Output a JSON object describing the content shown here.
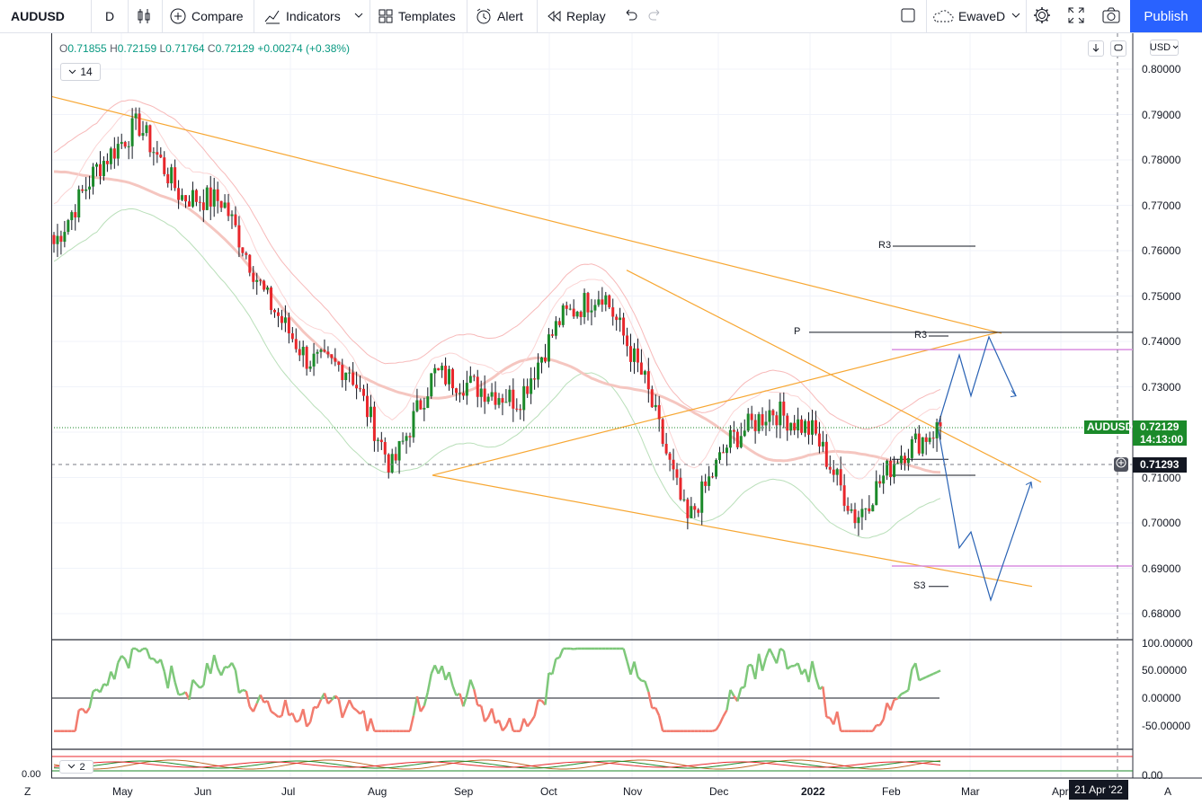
{
  "toolbar": {
    "symbol": "AUDUSD",
    "interval": "D",
    "compare_label": "Compare",
    "indicators_label": "Indicators",
    "templates_label": "Templates",
    "alert_label": "Alert",
    "replay_label": "Replay",
    "layout_name": "EwaveD",
    "publish_label": "Publish"
  },
  "legend": {
    "open_key": "O",
    "open": "0.71855",
    "high_key": "H",
    "high": "0.72159",
    "low_key": "L",
    "low": "0.71764",
    "close_key": "C",
    "close": "0.72129",
    "change": "+0.00274 (+0.38%)",
    "study_value": "14",
    "study2_value": "2"
  },
  "price_scale": {
    "currency": "USD",
    "ticks": [
      "0.80000",
      "0.79000",
      "0.78000",
      "0.77000",
      "0.76000",
      "0.75000",
      "0.74000",
      "0.73000",
      "0.72000",
      "0.71000",
      "0.70000",
      "0.69000",
      "0.68000"
    ],
    "last_symbol": "AUDUSD",
    "last_price": "0.72129",
    "countdown": "14:13:00",
    "crosshair_price": "0.71293"
  },
  "osc_scale": {
    "ticks": [
      "100.00000",
      "50.00000",
      "0.00000",
      "-50.00000"
    ],
    "bottom_tick": "0.00",
    "left_tick": "0.00"
  },
  "time_axis": {
    "labels": [
      "May",
      "Jun",
      "Jul",
      "Aug",
      "Sep",
      "Oct",
      "Nov",
      "Dec",
      "2022",
      "Feb",
      "Mar",
      "Apr"
    ],
    "crosshair_date": "21 Apr '22",
    "left_btn": "Z",
    "right_btn": "A"
  },
  "annotations": {
    "r3_upper": "R3",
    "pivot": "P",
    "r3_lower": "R3",
    "s3": "S3"
  },
  "colors": {
    "up": "#089981",
    "down": "#f23645",
    "up_candle": "#1b8a2a",
    "down_candle": "#e8262b",
    "trendline": "#f7a733",
    "projection": "#2962b4",
    "magenta_level": "#d98ee0",
    "publish": "#2962ff",
    "last_price_bg": "#1b8a2a"
  },
  "chart_data": {
    "type": "candlestick",
    "symbol": "AUDUSD",
    "interval": "D",
    "x_range": [
      "Apr 2021",
      "Apr 2022"
    ],
    "ylim": [
      0.675,
      0.805
    ],
    "close_path": [
      [
        "Apr",
        0.7615
      ],
      [
        "May",
        0.778
      ],
      [
        "May",
        0.788
      ],
      [
        "Jun",
        0.772
      ],
      [
        "Jun",
        0.771
      ],
      [
        "Jul",
        0.75
      ],
      [
        "Jul",
        0.736
      ],
      [
        "Aug",
        0.734
      ],
      [
        "Aug",
        0.712
      ],
      [
        "Sep",
        0.733
      ],
      [
        "Sep",
        0.73
      ],
      [
        "Oct",
        0.727
      ],
      [
        "Oct",
        0.745
      ],
      [
        "Nov",
        0.751
      ],
      [
        "Nov",
        0.731
      ],
      [
        "Dec",
        0.7
      ],
      [
        "Dec",
        0.718
      ],
      [
        "Jan 2022",
        0.725
      ],
      [
        "Jan 2022",
        0.72
      ],
      [
        "Feb",
        0.701
      ],
      [
        "Feb",
        0.715
      ],
      [
        "Feb",
        0.7213
      ]
    ],
    "levels": {
      "R3_upper": 0.761,
      "P": 0.742,
      "R3_lower": 0.7412,
      "S3": 0.686,
      "magenta_upper": 0.7382,
      "magenta_lower": 0.6905
    },
    "oscillator": {
      "ylim": [
        -80,
        110
      ],
      "last_value": 50
    }
  }
}
